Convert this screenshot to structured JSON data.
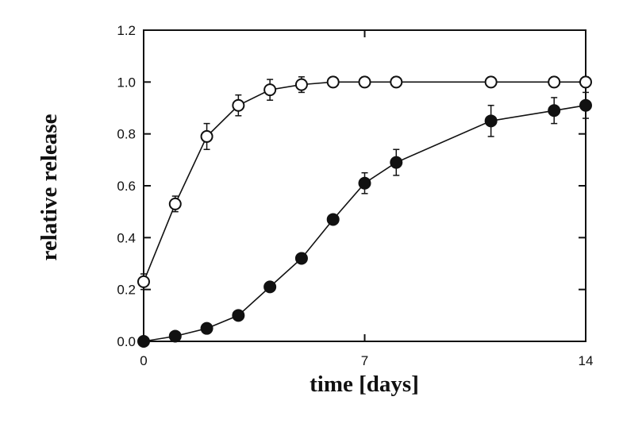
{
  "chart_data": {
    "type": "line",
    "title": "",
    "xlabel": "time [days]",
    "ylabel": "relative release",
    "xlim": [
      0,
      14
    ],
    "ylim": [
      0,
      1.2
    ],
    "xticks": [
      0,
      7,
      14
    ],
    "xtick_labels": [
      "0",
      "7",
      "14"
    ],
    "yticks": [
      0,
      0.2,
      0.4,
      0.6,
      0.8,
      1.0,
      1.2
    ],
    "ytick_labels": [
      "0.0",
      "0.2",
      "0.4",
      "0.6",
      "0.8",
      "1.0",
      "1.2"
    ],
    "grid": false,
    "legend": "none",
    "series": [
      {
        "marker": "open-circle",
        "color": "#111111",
        "x": [
          0,
          1,
          2,
          3,
          4,
          5,
          6,
          7,
          8,
          11,
          13,
          14
        ],
        "y": [
          0.23,
          0.53,
          0.79,
          0.91,
          0.97,
          0.99,
          1.0,
          1.0,
          1.0,
          1.0,
          1.0,
          1.0
        ],
        "err": [
          0.03,
          0.03,
          0.05,
          0.04,
          0.04,
          0.03,
          0.02,
          0.02,
          0.02,
          0.02,
          0.02,
          0.02
        ]
      },
      {
        "marker": "filled-circle",
        "color": "#111111",
        "x": [
          0,
          1,
          2,
          3,
          4,
          5,
          6,
          7,
          8,
          11,
          13,
          14
        ],
        "y": [
          0.0,
          0.02,
          0.05,
          0.1,
          0.21,
          0.32,
          0.47,
          0.61,
          0.69,
          0.85,
          0.89,
          0.91
        ],
        "err": [
          0.01,
          0.01,
          0.01,
          0.01,
          0.01,
          0.01,
          0.01,
          0.04,
          0.05,
          0.06,
          0.05,
          0.05
        ]
      }
    ]
  }
}
